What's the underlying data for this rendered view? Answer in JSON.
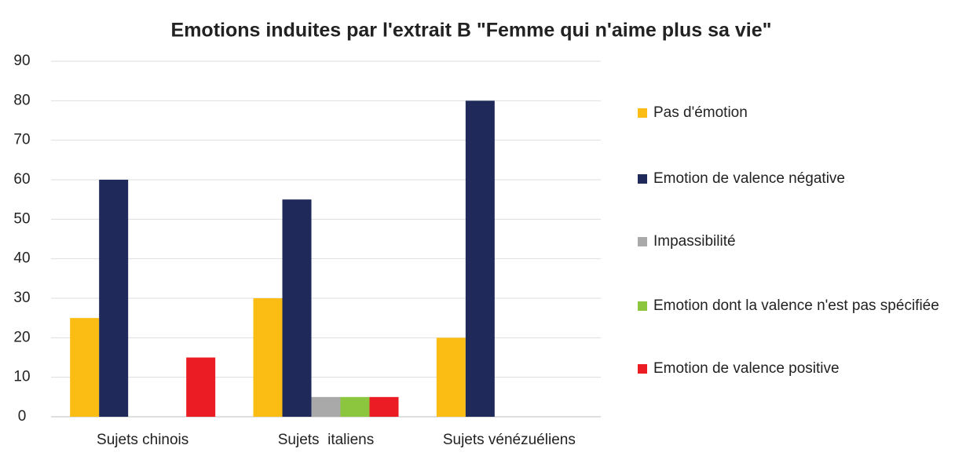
{
  "chart_data": {
    "type": "bar",
    "title": "Emotions induites par l'extrait B \"Femme qui n'aime plus sa vie\"",
    "categories": [
      "Sujets chinois",
      "Sujets  italiens",
      "Sujets vénézuéliens"
    ],
    "series": [
      {
        "name": "Pas d'émotion",
        "color": "#fbbd14",
        "values": [
          25,
          30,
          20
        ]
      },
      {
        "name": "Emotion de valence négative",
        "color": "#1f2a5b",
        "values": [
          60,
          55,
          80
        ]
      },
      {
        "name": "Impassibilité",
        "color": "#a9a9a9",
        "values": [
          0,
          5,
          0
        ]
      },
      {
        "name": "Emotion dont la valence n'est pas spécifiée",
        "color": "#8cc63f",
        "values": [
          0,
          5,
          0
        ]
      },
      {
        "name": "Emotion de valence positive",
        "color": "#ec1c24",
        "values": [
          15,
          5,
          0
        ]
      }
    ],
    "ylim": [
      0,
      90
    ],
    "yticks": [
      0,
      10,
      20,
      30,
      40,
      50,
      60,
      70,
      80,
      90
    ],
    "grid": true,
    "legend": "right"
  }
}
